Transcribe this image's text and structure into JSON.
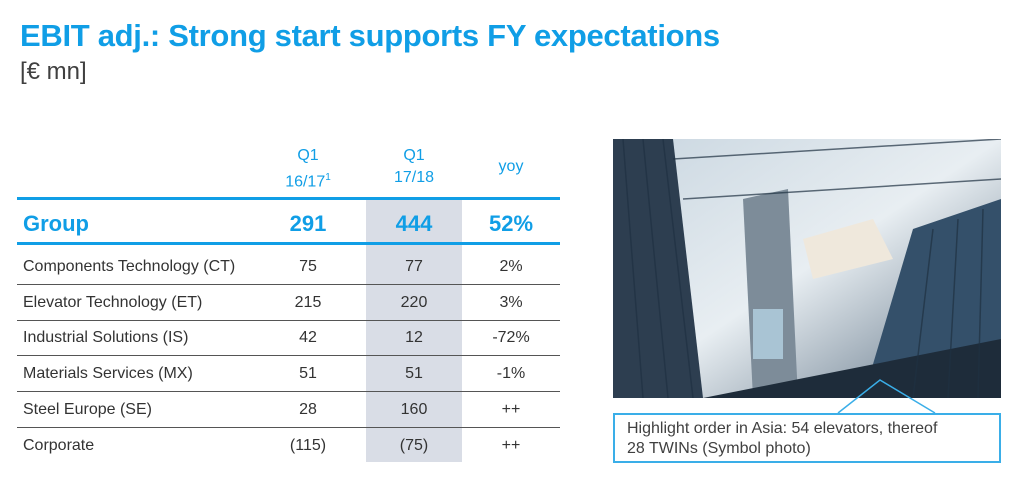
{
  "title": "EBIT adj.: Strong start supports FY expectations",
  "subtitle": "[€ mn]",
  "table": {
    "headers": [
      {
        "l1": "Q1",
        "l2": "16/17",
        "sup": "1"
      },
      {
        "l1": "Q1",
        "l2": "17/18"
      },
      {
        "l1": "yoy"
      }
    ],
    "group": {
      "label": "Group",
      "prev": "291",
      "curr": "444",
      "yoy": "52%"
    },
    "rows": [
      {
        "label": "Components Technology (CT)",
        "prev": "75",
        "curr": "77",
        "yoy": "2%"
      },
      {
        "label": "Elevator Technology (ET)",
        "prev": "215",
        "curr": "220",
        "yoy": "3%"
      },
      {
        "label": "Industrial Solutions (IS)",
        "prev": "42",
        "curr": "12",
        "yoy": "-72%"
      },
      {
        "label": "Materials Services (MX)",
        "prev": "51",
        "curr": "51",
        "yoy": "-1%"
      },
      {
        "label": "Steel Europe (SE)",
        "prev": "28",
        "curr": "160",
        "yoy": "++"
      },
      {
        "label": "Corporate",
        "prev": "(115)",
        "curr": "(75)",
        "yoy": "++"
      }
    ]
  },
  "callout": {
    "line1": "Highlight order in Asia: 54 elevators, thereof",
    "line2": "28 TWINs (Symbol photo)"
  },
  "colors": {
    "accent": "#109ee6",
    "shade": "#d9dde6"
  }
}
